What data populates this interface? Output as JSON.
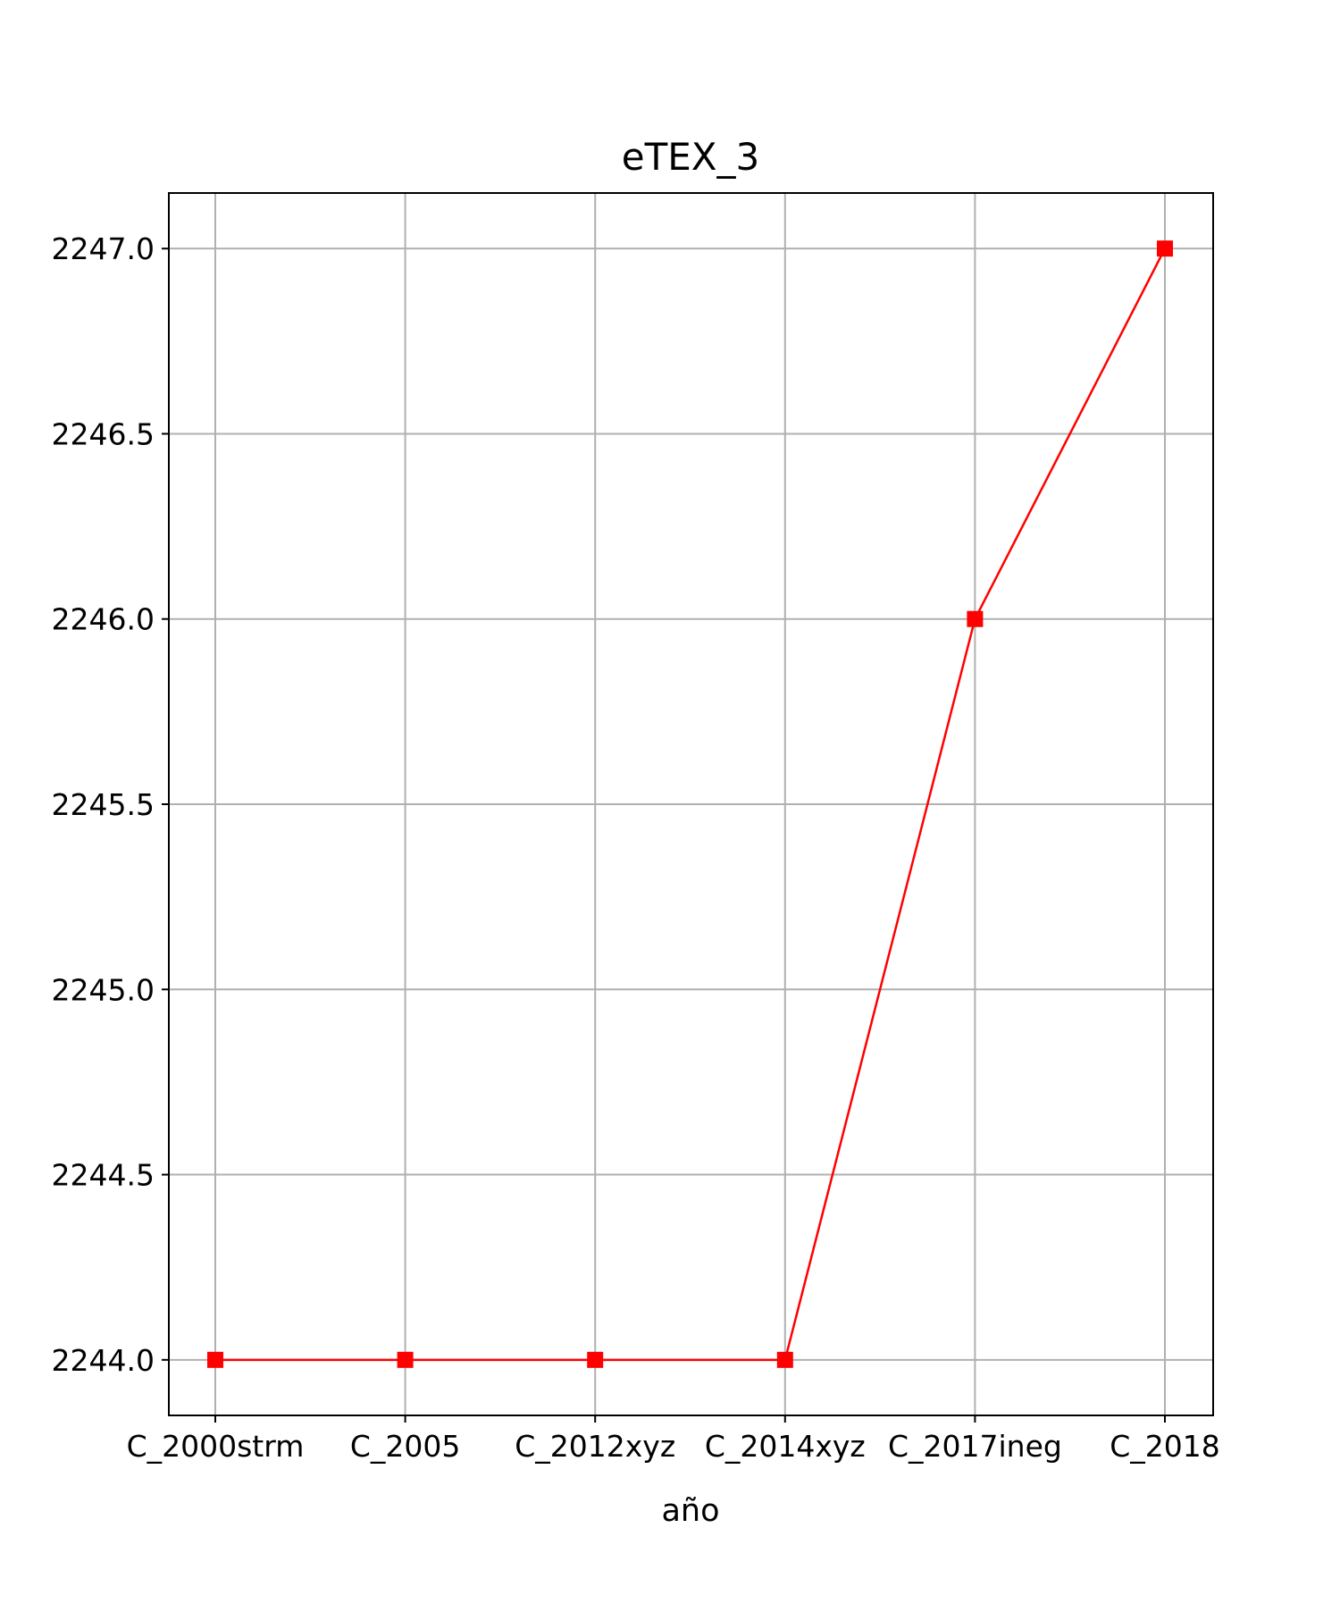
{
  "chart_data": {
    "type": "line",
    "title": "eTEX_3",
    "xlabel": "año",
    "ylabel": "",
    "categories": [
      "C_2000strm",
      "C_2005",
      "C_2012xyz",
      "C_2014xyz",
      "C_2017ineg",
      "C_2018"
    ],
    "series": [
      {
        "values": [
          2244.0,
          2244.0,
          2244.0,
          2244.0,
          2246.0,
          2247.0
        ],
        "color": "#ff0000",
        "marker": "square"
      }
    ],
    "ylim": [
      2243.85,
      2247.15
    ],
    "yticks": [
      "2244.0",
      "2244.5",
      "2245.0",
      "2245.5",
      "2246.0",
      "2246.5",
      "2247.0"
    ],
    "grid": true,
    "legend": "none"
  }
}
